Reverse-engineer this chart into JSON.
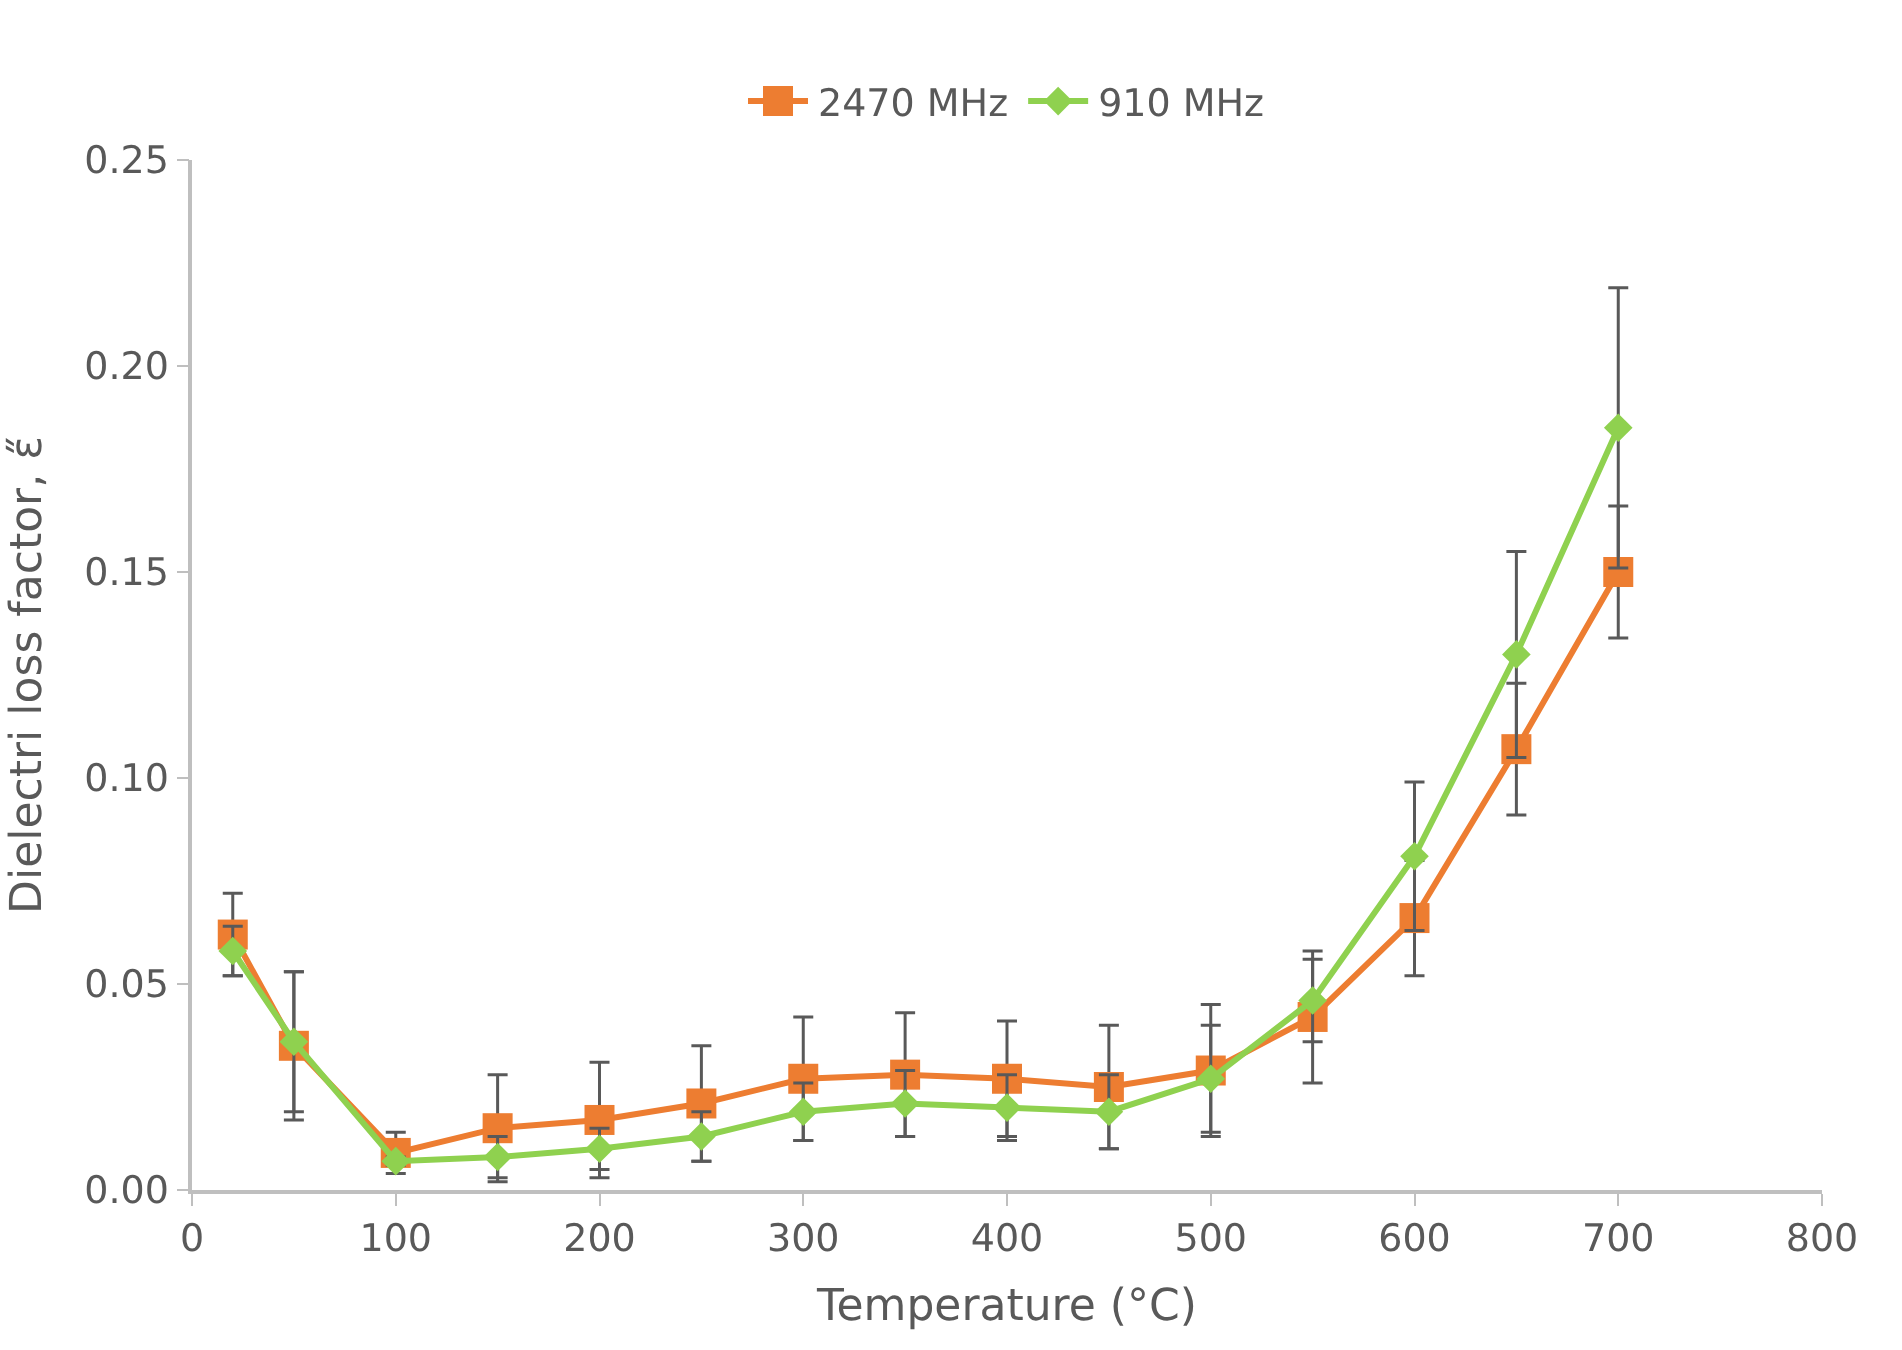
{
  "chart_data": {
    "type": "line",
    "xlabel": "Temperature (°C)",
    "ylabel": "Dielectri loss factor, ε̋",
    "x": [
      20,
      50,
      100,
      150,
      200,
      250,
      300,
      350,
      400,
      450,
      500,
      550,
      600,
      650,
      700
    ],
    "series": [
      {
        "name": "2470 MHz",
        "color": "#ed7d31",
        "marker": "square",
        "values": [
          0.062,
          0.035,
          0.009,
          0.015,
          0.017,
          0.021,
          0.027,
          0.028,
          0.027,
          0.025,
          0.029,
          0.042,
          0.066,
          0.107,
          0.15
        ],
        "errors": [
          0.01,
          0.018,
          0.005,
          0.013,
          0.014,
          0.014,
          0.015,
          0.015,
          0.014,
          0.015,
          0.016,
          0.016,
          0.014,
          0.016,
          0.016
        ]
      },
      {
        "name": "910 MHz",
        "color": "#8fd14f",
        "marker": "diamond",
        "values": [
          0.058,
          0.036,
          0.007,
          0.008,
          0.01,
          0.013,
          0.019,
          0.021,
          0.02,
          0.019,
          0.027,
          0.046,
          0.081,
          0.13,
          0.185
        ],
        "errors": [
          0.006,
          0.017,
          0.001,
          0.005,
          0.005,
          0.006,
          0.007,
          0.008,
          0.008,
          0.009,
          0.013,
          0.01,
          0.018,
          0.025,
          0.034
        ]
      }
    ],
    "xlim": [
      0,
      800
    ],
    "xticks": [
      0,
      100,
      200,
      300,
      400,
      500,
      600,
      700,
      800
    ],
    "ylim": [
      0,
      0.25
    ],
    "yticks": [
      {
        "value": 0,
        "label": "0.00"
      },
      {
        "value": 0.05,
        "label": "0.05"
      },
      {
        "value": 0.1,
        "label": "0.10"
      },
      {
        "value": 0.15,
        "label": "0.15"
      },
      {
        "value": 0.2,
        "label": "0.20"
      },
      {
        "value": 0.25,
        "label": "0.25"
      }
    ],
    "legend": "top"
  }
}
